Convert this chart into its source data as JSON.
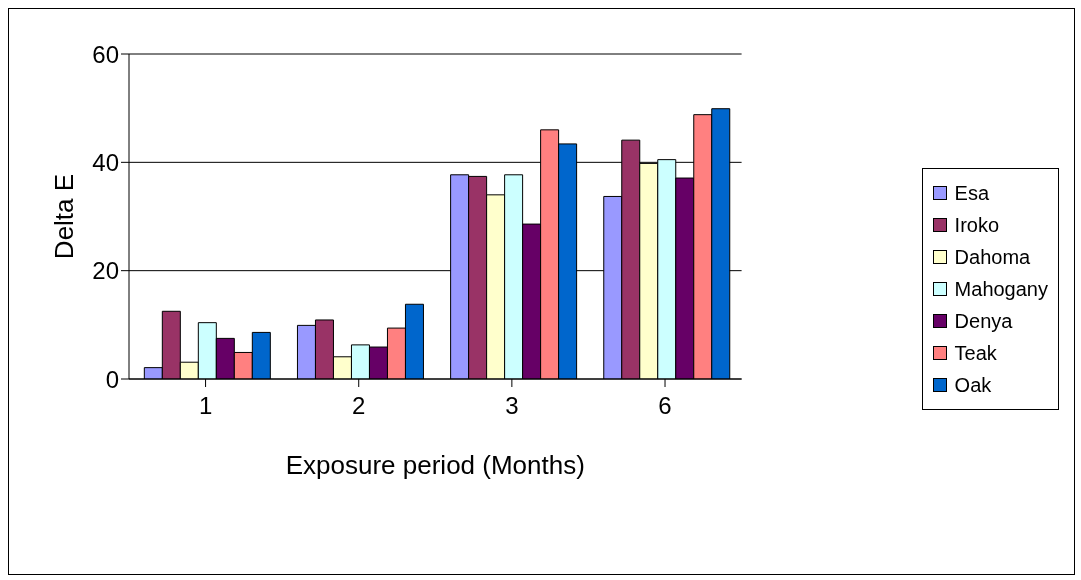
{
  "chart_data": {
    "type": "bar",
    "xlabel": "Exposure period (Months)",
    "ylabel": "Delta E",
    "categories": [
      "1",
      "2",
      "3",
      "6"
    ],
    "series": [
      {
        "name": "Esa",
        "color": "#9999ff",
        "values": [
          2.1,
          9.9,
          37.7,
          33.7
        ]
      },
      {
        "name": "Iroko",
        "color": "#993366",
        "values": [
          12.5,
          10.9,
          37.4,
          44.1
        ]
      },
      {
        "name": "Dahoma",
        "color": "#ffffcc",
        "values": [
          3.1,
          4.1,
          34.0,
          39.8
        ]
      },
      {
        "name": "Mahogany",
        "color": "#ccffff",
        "values": [
          10.4,
          6.3,
          37.7,
          40.5
        ]
      },
      {
        "name": "Denya",
        "color": "#660066",
        "values": [
          7.5,
          5.9,
          28.6,
          37.1
        ]
      },
      {
        "name": "Teak",
        "color": "#ff8080",
        "values": [
          4.9,
          9.4,
          46.0,
          48.8
        ]
      },
      {
        "name": "Oak",
        "color": "#0066cc",
        "values": [
          8.6,
          13.8,
          43.4,
          49.9
        ]
      }
    ],
    "ylim": [
      0,
      60
    ],
    "yticks": [
      0,
      20,
      40,
      60
    ],
    "grid": "y",
    "legend": "right"
  }
}
